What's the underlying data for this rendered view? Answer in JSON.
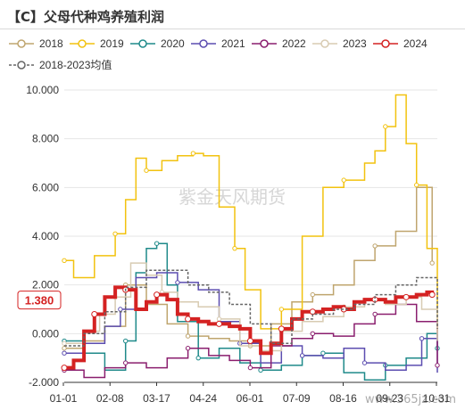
{
  "chart_data": {
    "type": "line",
    "title": "【C】父母代种鸡养殖利润",
    "xlabel": "",
    "ylabel": "",
    "ylim": [
      -2.0,
      10.0
    ],
    "yticks": [
      "10.000",
      "8.000",
      "6.000",
      "4.000",
      "2.000",
      "0.000",
      "-2.000"
    ],
    "ytick_values": [
      10,
      8,
      6,
      4,
      2,
      0,
      -2
    ],
    "xticks": [
      "01-01",
      "02-08",
      "03-17",
      "04-24",
      "06-01",
      "07-09",
      "08-16",
      "09-23",
      "10-31"
    ],
    "x_range": [
      1,
      360
    ],
    "grid": "horizontal",
    "legend_position": "top",
    "callout_label": "1.380",
    "callout_value": 1.38,
    "watermark": "紫金天风期货",
    "site_mark": "www.365jz.com",
    "series": [
      {
        "name": "2018",
        "color": "#bfa56e",
        "width": 1.5,
        "dash": "",
        "marker": true,
        "x": [
          1,
          20,
          40,
          60,
          80,
          100,
          120,
          140,
          160,
          180,
          200,
          220,
          240,
          260,
          280,
          300,
          320,
          340,
          355
        ],
        "y": [
          -0.6,
          -0.3,
          0.3,
          2.0,
          1.2,
          0.4,
          -0.1,
          -0.2,
          -0.3,
          -0.5,
          0.4,
          1.3,
          1.6,
          2.0,
          3.0,
          3.6,
          4.2,
          6.0,
          2.9
        ]
      },
      {
        "name": "2019",
        "color": "#f2c20f",
        "width": 1.5,
        "dash": "",
        "marker": true,
        "x": [
          1,
          10,
          30,
          50,
          60,
          70,
          80,
          95,
          110,
          125,
          135,
          150,
          165,
          175,
          190,
          210,
          230,
          250,
          270,
          290,
          300,
          310,
          320,
          330,
          340,
          350,
          360
        ],
        "y": [
          3.0,
          2.3,
          3.2,
          4.1,
          5.5,
          7.2,
          6.7,
          7.1,
          7.3,
          7.4,
          7.3,
          5.2,
          3.5,
          1.8,
          0.2,
          1.0,
          4.0,
          6.0,
          6.3,
          7.0,
          7.5,
          8.5,
          9.8,
          7.8,
          6.1,
          3.5,
          -0.1
        ]
      },
      {
        "name": "2020",
        "color": "#1f8a8a",
        "width": 1.5,
        "dash": "",
        "marker": true,
        "x": [
          1,
          20,
          40,
          60,
          70,
          80,
          90,
          100,
          110,
          130,
          150,
          170,
          190,
          210,
          230,
          250,
          270,
          290,
          310,
          330,
          350,
          360
        ],
        "y": [
          -0.3,
          -0.8,
          -1.5,
          -0.3,
          2.5,
          3.5,
          3.7,
          2.0,
          0.5,
          -1.0,
          -0.6,
          -1.2,
          -1.5,
          -1.3,
          -0.9,
          -0.8,
          -1.6,
          -1.9,
          -1.3,
          -1.0,
          0.0,
          -0.6
        ]
      },
      {
        "name": "2021",
        "color": "#5c4db0",
        "width": 1.5,
        "dash": "",
        "marker": true,
        "x": [
          1,
          20,
          40,
          55,
          70,
          90,
          110,
          130,
          150,
          170,
          190,
          210,
          230,
          250,
          270,
          290,
          310,
          330,
          345,
          360
        ],
        "y": [
          -0.8,
          -0.4,
          0.3,
          1.0,
          2.3,
          2.5,
          2.1,
          1.8,
          0.5,
          -0.4,
          -1.2,
          -0.5,
          -0.9,
          -1.0,
          -0.6,
          -1.2,
          -1.5,
          -1.3,
          -0.2,
          -1.6
        ]
      },
      {
        "name": "2022",
        "color": "#8a1e6e",
        "width": 1.5,
        "dash": "",
        "marker": true,
        "x": [
          1,
          20,
          40,
          60,
          80,
          100,
          120,
          140,
          160,
          180,
          200,
          220,
          240,
          260,
          280,
          300,
          320,
          340,
          360
        ],
        "y": [
          -1.5,
          -1.8,
          -1.4,
          -1.2,
          -1.4,
          -1.0,
          -0.6,
          -0.9,
          -1.1,
          -1.4,
          -0.5,
          -0.2,
          0.0,
          -0.1,
          0.4,
          0.8,
          1.2,
          0.5,
          -1.3
        ]
      },
      {
        "name": "2023",
        "color": "#d8cbb2",
        "width": 1.5,
        "dash": "",
        "marker": true,
        "x": [
          1,
          20,
          35,
          50,
          65,
          80,
          95,
          110,
          130,
          150,
          170,
          190,
          210,
          230,
          250,
          270,
          290,
          310,
          330,
          345,
          360
        ],
        "y": [
          -0.4,
          0.1,
          0.8,
          1.5,
          2.9,
          2.4,
          1.7,
          1.3,
          1.1,
          0.6,
          -0.5,
          -0.7,
          0.1,
          0.5,
          0.7,
          1.1,
          1.4,
          1.2,
          1.5,
          1.0,
          -0.3
        ]
      },
      {
        "name": "2024",
        "color": "#d42222",
        "width": 4,
        "dash": "",
        "marker": true,
        "x": [
          1,
          10,
          20,
          30,
          40,
          50,
          60,
          70,
          80,
          90,
          100,
          110,
          120,
          130,
          140,
          150,
          160,
          170,
          180,
          190,
          200,
          210,
          220,
          230,
          240,
          250,
          260,
          270,
          280,
          290,
          300,
          310,
          320,
          330,
          340,
          350,
          355
        ],
        "y": [
          -1.4,
          -1.1,
          0.1,
          0.8,
          1.5,
          1.9,
          1.8,
          1.0,
          1.3,
          1.6,
          1.4,
          0.8,
          0.6,
          0.5,
          0.4,
          0.4,
          0.3,
          0.2,
          -0.3,
          -0.8,
          -0.4,
          0.2,
          0.6,
          0.9,
          0.9,
          1.0,
          1.1,
          1.0,
          1.3,
          1.4,
          1.4,
          1.3,
          1.5,
          1.5,
          1.6,
          1.7,
          1.6
        ]
      },
      {
        "name": "2018-2023均值",
        "color": "#666666",
        "width": 1.5,
        "dash": "3,2",
        "marker": false,
        "x": [
          1,
          20,
          40,
          60,
          80,
          100,
          120,
          140,
          160,
          180,
          200,
          220,
          240,
          260,
          280,
          300,
          320,
          340,
          360
        ],
        "y": [
          -0.5,
          0.0,
          0.9,
          1.9,
          2.6,
          2.6,
          2.0,
          1.7,
          1.2,
          0.4,
          -0.4,
          0.6,
          0.8,
          1.0,
          1.2,
          1.6,
          2.0,
          2.3,
          0.2
        ]
      }
    ]
  }
}
